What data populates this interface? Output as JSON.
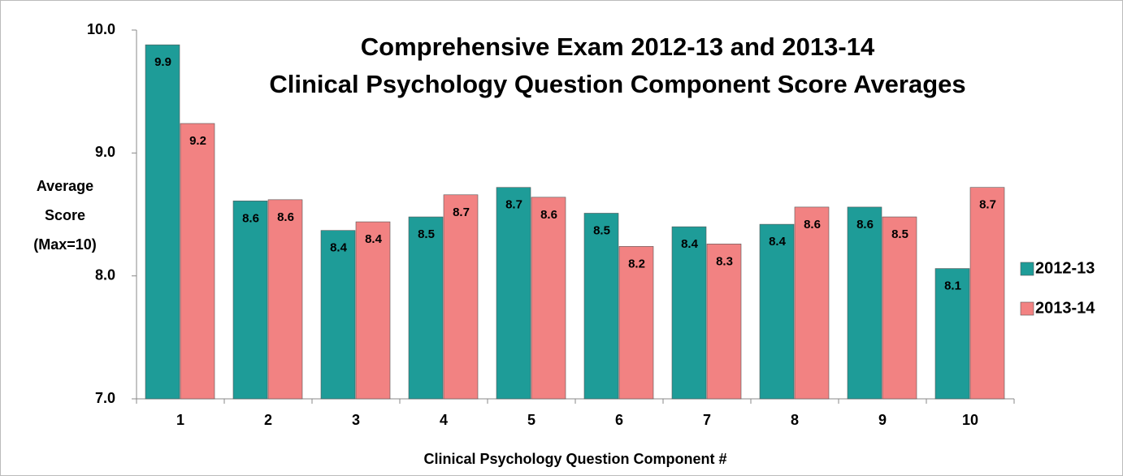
{
  "chart_data": {
    "type": "bar",
    "title": [
      "Comprehensive Exam 2012-13 and 2013-14",
      "Clinical Psychology  Question Component Score Averages"
    ],
    "y_label": [
      "Average",
      "Score",
      "(Max=10)"
    ],
    "x_label": "Clinical Psychology Question Component #",
    "categories": [
      "1",
      "2",
      "3",
      "4",
      "5",
      "6",
      "7",
      "8",
      "9",
      "10"
    ],
    "series": [
      {
        "name": "2012-13",
        "color": "#1e9c98",
        "values": [
          9.88,
          8.61,
          8.37,
          8.48,
          8.72,
          8.51,
          8.4,
          8.42,
          8.56,
          8.06
        ],
        "value_labels": [
          "9.9",
          "8.6",
          "8.4",
          "8.5",
          "8.7",
          "8.5",
          "8.4",
          "8.4",
          "8.6",
          "8.1"
        ]
      },
      {
        "name": "2013-14",
        "color": "#f28282",
        "values": [
          9.24,
          8.62,
          8.44,
          8.66,
          8.64,
          8.24,
          8.26,
          8.56,
          8.48,
          8.72
        ],
        "value_labels": [
          "9.2",
          "8.6",
          "8.4",
          "8.7",
          "8.6",
          "8.2",
          "8.3",
          "8.6",
          "8.5",
          "8.7"
        ]
      }
    ],
    "ylim": [
      7,
      10
    ],
    "yticks": [
      {
        "value": 7,
        "label": "7.0"
      },
      {
        "value": 8,
        "label": "8.0"
      },
      {
        "value": 9,
        "label": "9.0"
      },
      {
        "value": 10,
        "label": "10.0"
      }
    ],
    "legend": "right"
  }
}
